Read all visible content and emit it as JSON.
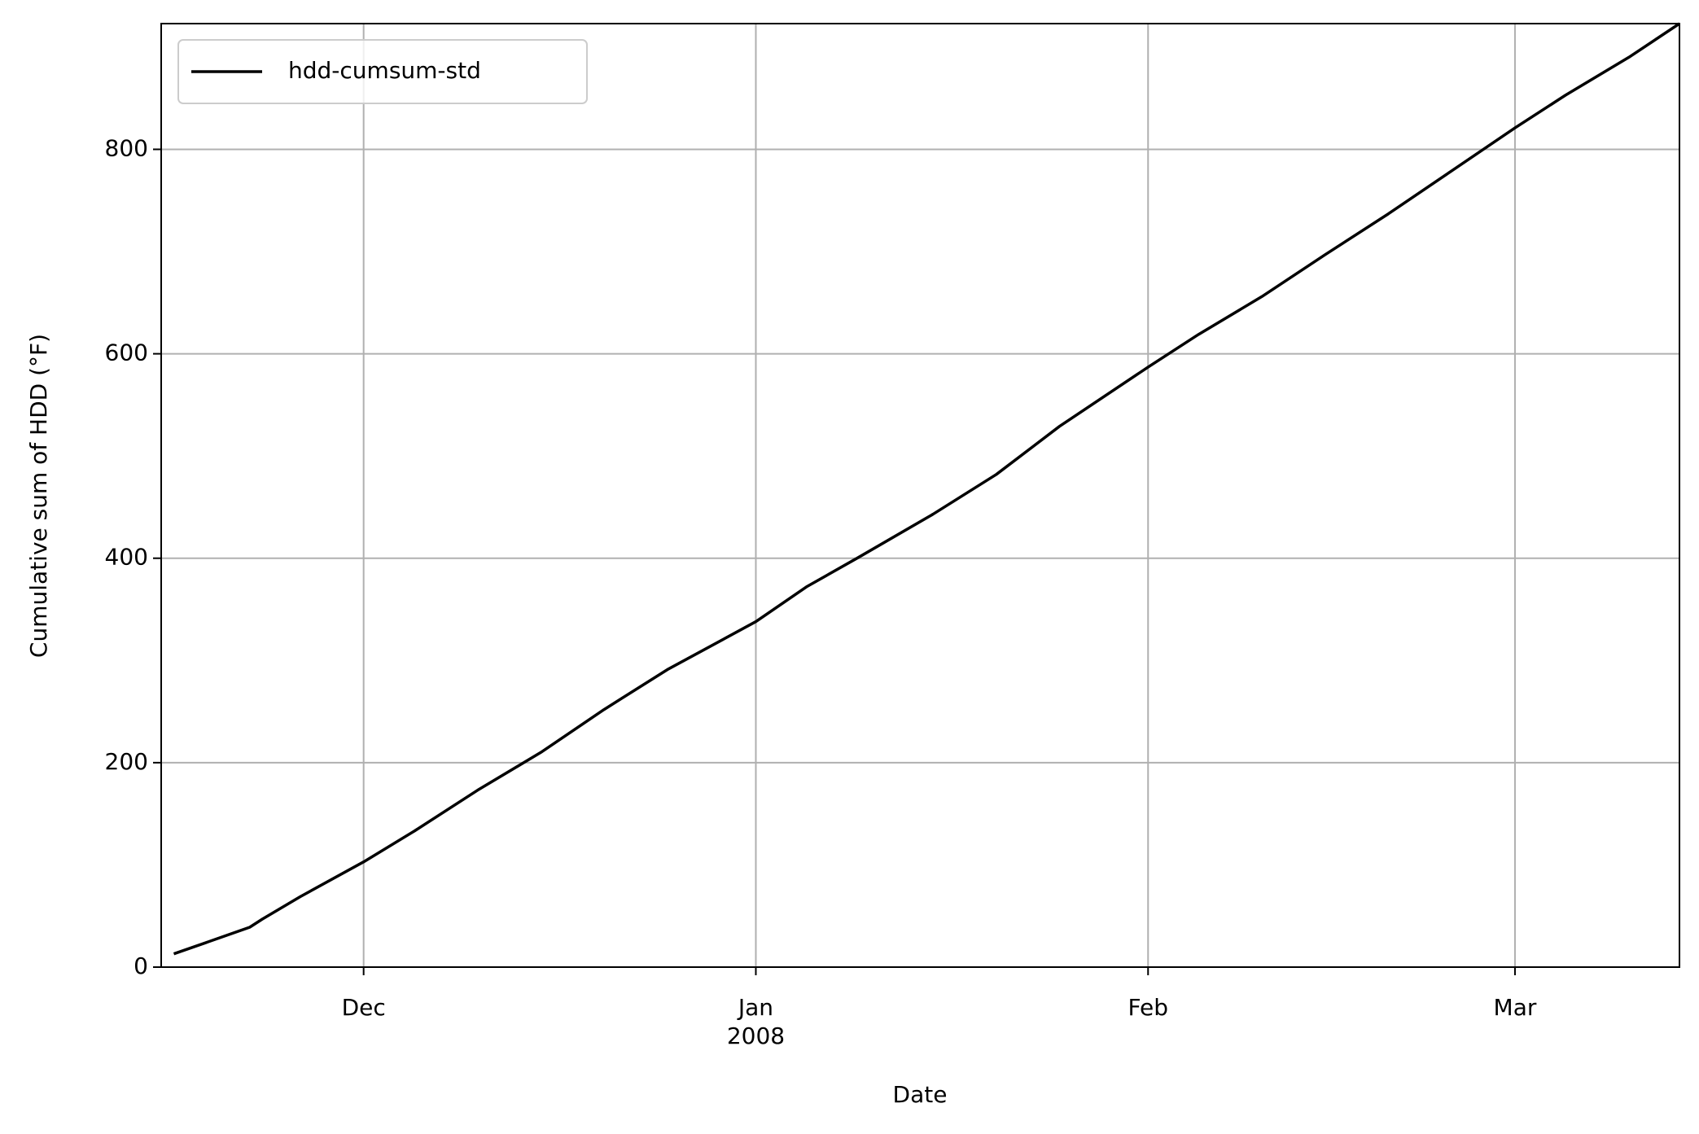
{
  "chart_data": {
    "type": "line",
    "x_label": "Date",
    "y_label": "Cumulative sum of HDD (°F)",
    "x": [
      "2007-11-16",
      "2007-11-19",
      "2007-11-22",
      "2007-11-23",
      "2007-11-26",
      "2007-12-01",
      "2007-12-05",
      "2007-12-10",
      "2007-12-15",
      "2007-12-20",
      "2007-12-25",
      "2008-01-01",
      "2008-01-05",
      "2008-01-09",
      "2008-01-15",
      "2008-01-20",
      "2008-01-25",
      "2008-02-01",
      "2008-02-05",
      "2008-02-10",
      "2008-02-15",
      "2008-02-20",
      "2008-02-25",
      "2008-03-01",
      "2008-03-05",
      "2008-03-10",
      "2008-03-14"
    ],
    "series": [
      {
        "name": "hdd-cumsum-std",
        "color": "#000000",
        "values": [
          13,
          26,
          39,
          47,
          69,
          103,
          133,
          173,
          210,
          252,
          291,
          338,
          372,
          400,
          443,
          482,
          529,
          587,
          619,
          656,
          697,
          737,
          779,
          821,
          853,
          890,
          923
        ]
      }
    ],
    "xlim": [
      "2007-11-15",
      "2008-03-14"
    ],
    "xticks": [
      {
        "value": "2007-12-01",
        "label": "Dec"
      },
      {
        "value": "2008-01-01",
        "label": "Jan\n2008"
      },
      {
        "value": "2008-02-01",
        "label": "Feb"
      },
      {
        "value": "2008-03-01",
        "label": "Mar"
      }
    ],
    "ylim": [
      0,
      923
    ],
    "yticks": [
      0,
      200,
      400,
      600,
      800
    ],
    "grid": true,
    "legend": "upper left"
  }
}
